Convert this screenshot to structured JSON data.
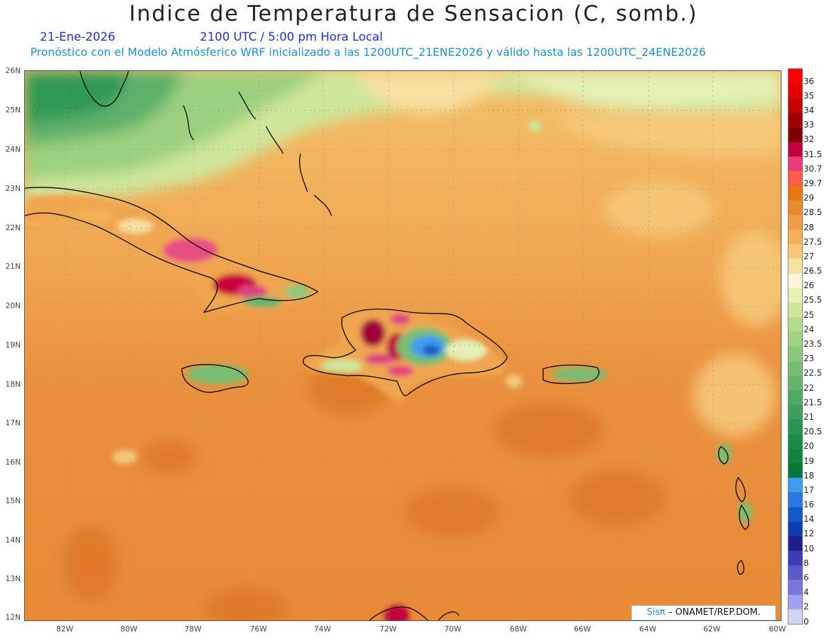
{
  "header": {
    "title": "Indice de Temperatura de Sensacion (C, somb.)",
    "date": "21-Ene-2026",
    "time": "2100 UTC / 5:00 pm Hora Local",
    "description": "Pronóstico con el Modelo Atmósferico WRF inicializado a las 1200UTC_21ENE2026 y válido hasta las  1200UTC_24ENE2026"
  },
  "axes": {
    "lat_labels": [
      "26N",
      "25N",
      "24N",
      "23N",
      "22N",
      "21N",
      "20N",
      "19N",
      "18N",
      "17N",
      "16N",
      "15N",
      "14N",
      "13N",
      "12N"
    ],
    "lon_labels": [
      "82W",
      "80W",
      "78W",
      "76W",
      "74W",
      "72W",
      "70W",
      "68W",
      "66W",
      "64W",
      "62W",
      "60W"
    ]
  },
  "colorbar": {
    "labels": [
      "36",
      "35",
      "34",
      "33",
      "32",
      "31.5",
      "30.7",
      "29.7",
      "29",
      "28.5",
      "28",
      "27.5",
      "27",
      "26.5",
      "26",
      "25.5",
      "25",
      "24",
      "23.5",
      "23",
      "22.5",
      "22",
      "21.5",
      "21",
      "20.5",
      "20",
      "19",
      "18",
      "17",
      "16",
      "14",
      "12",
      "10",
      "8",
      "6",
      "4",
      "2",
      "0"
    ],
    "colors": [
      "#ff0000",
      "#e60000",
      "#c80000",
      "#a00000",
      "#800000",
      "#c0003c",
      "#e83c78",
      "#ff5a50",
      "#e87810",
      "#e88a30",
      "#f09a48",
      "#f4b055",
      "#f6c878",
      "#f8e0a0",
      "#fcf5dc",
      "#e4f0b4",
      "#cde69a",
      "#b4dc8c",
      "#a0d286",
      "#8cc87c",
      "#78be72",
      "#64b46a",
      "#50aa62",
      "#3ca05a",
      "#289652",
      "#1a8c4a",
      "#0e8240",
      "#06783a",
      "#3c9cf0",
      "#2878e0",
      "#1458c8",
      "#0a3cb4",
      "#1e1e8c",
      "#3c3cb4",
      "#5a5ac8",
      "#7878dc",
      "#a0a0f0",
      "#d2d2f5"
    ]
  },
  "colors": {
    "ocean_base": "#e8883a",
    "coast": "#000000",
    "grid": "#9a9a9a"
  },
  "credit": {
    "brand": "Sisπ",
    "text": "– ONAMET/REP.DOM."
  }
}
